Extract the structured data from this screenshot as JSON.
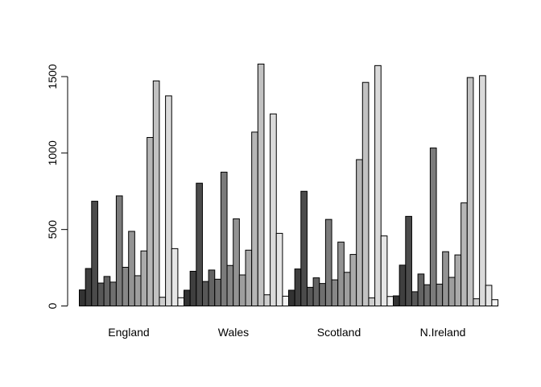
{
  "chart_data": {
    "type": "bar",
    "layout": "grouped",
    "categories": [
      "England",
      "Wales",
      "Scotland",
      "N.Ireland"
    ],
    "series_count": 17,
    "values": [
      [
        105,
        245,
        685,
        150,
        193,
        156,
        720,
        253,
        488,
        198,
        360,
        1102,
        1472,
        57,
        1374,
        375,
        54
      ],
      [
        103,
        227,
        803,
        160,
        235,
        175,
        875,
        265,
        570,
        203,
        365,
        1137,
        1582,
        73,
        1256,
        475,
        64
      ],
      [
        103,
        242,
        750,
        122,
        184,
        147,
        566,
        171,
        418,
        220,
        337,
        957,
        1462,
        53,
        1572,
        458,
        62
      ],
      [
        66,
        267,
        586,
        93,
        209,
        139,
        1033,
        143,
        355,
        187,
        334,
        674,
        1494,
        47,
        1506,
        135,
        41
      ]
    ],
    "ylim": [
      0,
      1650
    ],
    "yticks": [
      0,
      500,
      1000,
      1500
    ],
    "title": "",
    "xlabel": "",
    "ylabel": "",
    "grid": false,
    "legend": "none",
    "color_dark": "#333333",
    "color_light": "#f2f2f2"
  }
}
